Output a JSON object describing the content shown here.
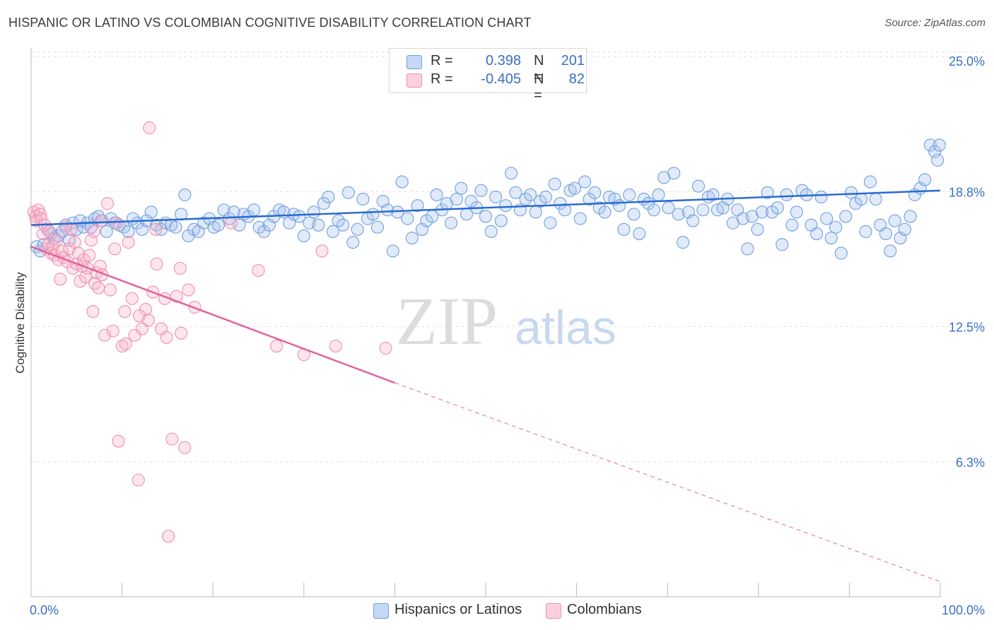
{
  "header": {
    "title": "HISPANIC OR LATINO VS COLOMBIAN COGNITIVE DISABILITY CORRELATION CHART",
    "source": "Source: ZipAtlas.com"
  },
  "legend": {
    "r_label": "R =",
    "n_label": "N =",
    "rows": [
      {
        "r": "0.398",
        "n": "201",
        "color": "#a9c4ee"
      },
      {
        "r": "-0.405",
        "n": "82",
        "color": "#f5b5ca"
      }
    ]
  },
  "bottom_legend": [
    {
      "label": "Hispanics or Latinos",
      "color": "#a9c4ee"
    },
    {
      "label": "Colombians",
      "color": "#f5b5ca"
    }
  ],
  "watermark": {
    "zip": "ZIP",
    "atlas": "atlas"
  },
  "chart_data": {
    "type": "scatter",
    "title": "HISPANIC OR LATINO VS COLOMBIAN COGNITIVE DISABILITY CORRELATION CHART",
    "xlabel": "",
    "ylabel": "Cognitive Disability",
    "xlim": [
      0,
      100
    ],
    "ylim": [
      0,
      25
    ],
    "x_tick_labels": [
      "0.0%",
      "100.0%"
    ],
    "y_ticks": [
      6.25,
      12.5,
      18.75,
      25.0
    ],
    "y_tick_labels": [
      "6.3%",
      "12.5%",
      "18.8%",
      "25.0%"
    ],
    "grid": true,
    "series": [
      {
        "name": "Hispanics or Latinos",
        "color": "#6f9fdf",
        "trend": {
          "x": [
            0,
            100
          ],
          "y": [
            17.2,
            18.8
          ],
          "color": "#2a6bd0"
        },
        "points": [
          [
            0.6,
            16.2
          ],
          [
            1.0,
            16.0
          ],
          [
            1.4,
            16.3
          ],
          [
            1.8,
            17.0
          ],
          [
            2.2,
            16.8
          ],
          [
            2.6,
            16.6
          ],
          [
            3.0,
            16.7
          ],
          [
            3.4,
            16.9
          ],
          [
            3.8,
            17.2
          ],
          [
            4.2,
            16.5
          ],
          [
            4.6,
            17.3
          ],
          [
            5.0,
            17.0
          ],
          [
            5.4,
            17.4
          ],
          [
            5.8,
            17.1
          ],
          [
            6.2,
            17.3
          ],
          [
            6.6,
            17.1
          ],
          [
            7.0,
            17.5
          ],
          [
            7.4,
            17.6
          ],
          [
            7.8,
            17.4
          ],
          [
            8.3,
            16.9
          ],
          [
            8.8,
            17.5
          ],
          [
            9.2,
            17.3
          ],
          [
            9.7,
            17.2
          ],
          [
            10.2,
            17.1
          ],
          [
            10.7,
            16.9
          ],
          [
            11.2,
            17.5
          ],
          [
            11.7,
            17.3
          ],
          [
            12.2,
            17.0
          ],
          [
            12.7,
            17.4
          ],
          [
            13.2,
            17.8
          ],
          [
            13.8,
            17.2
          ],
          [
            14.3,
            17.0
          ],
          [
            14.8,
            17.3
          ],
          [
            15.4,
            17.2
          ],
          [
            15.9,
            17.1
          ],
          [
            16.5,
            17.7
          ],
          [
            16.9,
            18.6
          ],
          [
            17.3,
            16.7
          ],
          [
            17.9,
            17.0
          ],
          [
            18.4,
            16.9
          ],
          [
            19.0,
            17.3
          ],
          [
            19.6,
            17.5
          ],
          [
            20.1,
            17.1
          ],
          [
            20.6,
            17.2
          ],
          [
            21.2,
            17.9
          ],
          [
            21.8,
            17.5
          ],
          [
            22.3,
            17.8
          ],
          [
            22.9,
            17.2
          ],
          [
            23.4,
            17.7
          ],
          [
            23.9,
            17.6
          ],
          [
            24.5,
            17.9
          ],
          [
            25.1,
            17.1
          ],
          [
            25.6,
            16.9
          ],
          [
            26.2,
            17.2
          ],
          [
            26.7,
            17.6
          ],
          [
            27.3,
            17.9
          ],
          [
            27.8,
            17.8
          ],
          [
            28.4,
            17.3
          ],
          [
            28.9,
            17.7
          ],
          [
            29.5,
            17.6
          ],
          [
            30.0,
            16.7
          ],
          [
            30.6,
            17.3
          ],
          [
            31.1,
            17.8
          ],
          [
            31.6,
            17.2
          ],
          [
            32.2,
            18.2
          ],
          [
            32.7,
            18.5
          ],
          [
            33.2,
            16.9
          ],
          [
            33.8,
            17.4
          ],
          [
            34.3,
            17.2
          ],
          [
            34.9,
            18.7
          ],
          [
            35.4,
            16.4
          ],
          [
            35.9,
            17.0
          ],
          [
            36.5,
            18.4
          ],
          [
            37.0,
            17.5
          ],
          [
            37.6,
            17.7
          ],
          [
            38.1,
            17.1
          ],
          [
            38.7,
            18.3
          ],
          [
            39.2,
            17.9
          ],
          [
            39.8,
            16.0
          ],
          [
            40.3,
            17.8
          ],
          [
            40.8,
            19.2
          ],
          [
            41.4,
            17.5
          ],
          [
            41.9,
            16.6
          ],
          [
            42.5,
            18.1
          ],
          [
            43.0,
            17.0
          ],
          [
            43.5,
            17.4
          ],
          [
            44.1,
            17.6
          ],
          [
            44.6,
            18.6
          ],
          [
            45.2,
            17.9
          ],
          [
            45.7,
            18.2
          ],
          [
            46.2,
            17.3
          ],
          [
            46.8,
            18.4
          ],
          [
            47.3,
            18.9
          ],
          [
            47.9,
            17.7
          ],
          [
            48.4,
            18.3
          ],
          [
            49.0,
            18.0
          ],
          [
            49.5,
            18.8
          ],
          [
            50.0,
            17.6
          ],
          [
            50.6,
            16.9
          ],
          [
            51.1,
            18.5
          ],
          [
            51.7,
            17.4
          ],
          [
            52.2,
            18.1
          ],
          [
            52.8,
            19.6
          ],
          [
            53.3,
            18.7
          ],
          [
            53.8,
            17.9
          ],
          [
            54.4,
            18.4
          ],
          [
            54.9,
            18.6
          ],
          [
            55.5,
            17.8
          ],
          [
            56.0,
            18.3
          ],
          [
            56.6,
            18.5
          ],
          [
            57.1,
            17.3
          ],
          [
            57.6,
            19.1
          ],
          [
            58.2,
            18.2
          ],
          [
            58.7,
            17.9
          ],
          [
            59.3,
            18.8
          ],
          [
            59.8,
            18.9
          ],
          [
            60.4,
            17.5
          ],
          [
            60.9,
            19.2
          ],
          [
            61.4,
            18.4
          ],
          [
            62.0,
            18.7
          ],
          [
            62.5,
            18.0
          ],
          [
            63.1,
            17.8
          ],
          [
            63.6,
            18.5
          ],
          [
            64.2,
            18.4
          ],
          [
            64.7,
            18.1
          ],
          [
            65.2,
            17.0
          ],
          [
            65.8,
            18.6
          ],
          [
            66.3,
            17.7
          ],
          [
            66.9,
            16.8
          ],
          [
            67.4,
            18.4
          ],
          [
            67.9,
            18.2
          ],
          [
            68.5,
            17.9
          ],
          [
            69.0,
            18.6
          ],
          [
            69.6,
            19.4
          ],
          [
            70.1,
            18.0
          ],
          [
            70.7,
            19.6
          ],
          [
            71.2,
            17.7
          ],
          [
            71.7,
            16.4
          ],
          [
            72.3,
            17.8
          ],
          [
            72.8,
            17.4
          ],
          [
            73.4,
            19.0
          ],
          [
            73.9,
            17.9
          ],
          [
            74.5,
            18.5
          ],
          [
            75.0,
            18.6
          ],
          [
            75.5,
            17.9
          ],
          [
            76.1,
            18.0
          ],
          [
            76.6,
            18.4
          ],
          [
            77.2,
            17.3
          ],
          [
            77.7,
            17.9
          ],
          [
            78.3,
            17.5
          ],
          [
            78.8,
            16.1
          ],
          [
            79.3,
            17.6
          ],
          [
            79.9,
            17.0
          ],
          [
            80.4,
            17.8
          ],
          [
            81.0,
            18.7
          ],
          [
            81.5,
            17.8
          ],
          [
            82.1,
            18.0
          ],
          [
            82.6,
            16.3
          ],
          [
            83.1,
            18.6
          ],
          [
            83.7,
            17.2
          ],
          [
            84.2,
            17.8
          ],
          [
            84.8,
            18.8
          ],
          [
            85.3,
            18.6
          ],
          [
            85.8,
            17.2
          ],
          [
            86.4,
            16.8
          ],
          [
            86.9,
            18.5
          ],
          [
            87.5,
            17.5
          ],
          [
            88.0,
            16.6
          ],
          [
            88.5,
            17.1
          ],
          [
            89.1,
            15.9
          ],
          [
            89.6,
            17.6
          ],
          [
            90.2,
            18.7
          ],
          [
            90.7,
            18.2
          ],
          [
            91.3,
            18.4
          ],
          [
            91.8,
            16.9
          ],
          [
            92.3,
            19.2
          ],
          [
            92.9,
            18.4
          ],
          [
            93.4,
            17.2
          ],
          [
            94.0,
            16.8
          ],
          [
            94.5,
            16.0
          ],
          [
            95.0,
            17.4
          ],
          [
            95.6,
            16.6
          ],
          [
            96.1,
            17.0
          ],
          [
            96.7,
            17.6
          ],
          [
            97.2,
            18.6
          ],
          [
            97.8,
            18.9
          ],
          [
            98.3,
            19.3
          ],
          [
            98.9,
            20.9
          ],
          [
            99.4,
            20.6
          ],
          [
            99.7,
            20.2
          ],
          [
            99.9,
            20.9
          ]
        ]
      },
      {
        "name": "Colombians",
        "color": "#f08fb0",
        "trend": {
          "x": [
            0,
            40,
            100
          ],
          "y": [
            16.2,
            9.9,
            0.7
          ],
          "solid_until": 40,
          "color": "#e2639a"
        },
        "points": [
          [
            0.3,
            17.8
          ],
          [
            0.5,
            17.6
          ],
          [
            0.6,
            17.4
          ],
          [
            0.8,
            17.9
          ],
          [
            1.0,
            17.7
          ],
          [
            1.1,
            17.5
          ],
          [
            1.3,
            16.8
          ],
          [
            1.5,
            17.2
          ],
          [
            1.7,
            16.1
          ],
          [
            1.9,
            16.3
          ],
          [
            2.0,
            16.9
          ],
          [
            2.2,
            15.9
          ],
          [
            2.4,
            16.2
          ],
          [
            2.6,
            15.8
          ],
          [
            2.8,
            16.5
          ],
          [
            3.0,
            15.6
          ],
          [
            3.2,
            14.7
          ],
          [
            3.4,
            16.0
          ],
          [
            3.6,
            15.7
          ],
          [
            3.8,
            17.1
          ],
          [
            4.0,
            15.5
          ],
          [
            4.2,
            16.1
          ],
          [
            4.4,
            17.0
          ],
          [
            4.6,
            15.2
          ],
          [
            4.8,
            16.4
          ],
          [
            5.0,
            15.4
          ],
          [
            5.2,
            15.9
          ],
          [
            5.4,
            14.6
          ],
          [
            5.6,
            15.3
          ],
          [
            5.8,
            15.6
          ],
          [
            6.0,
            14.8
          ],
          [
            6.2,
            15.2
          ],
          [
            6.4,
            15.8
          ],
          [
            6.6,
            16.5
          ],
          [
            6.8,
            13.2
          ],
          [
            7.0,
            14.5
          ],
          [
            7.2,
            15.0
          ],
          [
            7.4,
            14.3
          ],
          [
            7.6,
            15.3
          ],
          [
            7.8,
            14.9
          ],
          [
            8.1,
            12.1
          ],
          [
            8.4,
            18.2
          ],
          [
            8.7,
            14.2
          ],
          [
            9.0,
            12.3
          ],
          [
            9.4,
            17.3
          ],
          [
            9.6,
            7.2
          ],
          [
            10.0,
            11.6
          ],
          [
            10.4,
            11.7
          ],
          [
            10.7,
            16.4
          ],
          [
            11.1,
            13.8
          ],
          [
            11.4,
            12.1
          ],
          [
            11.8,
            5.4
          ],
          [
            12.2,
            12.4
          ],
          [
            12.6,
            13.3
          ],
          [
            13.0,
            21.7
          ],
          [
            13.4,
            14.1
          ],
          [
            13.8,
            15.4
          ],
          [
            14.3,
            12.4
          ],
          [
            14.7,
            13.8
          ],
          [
            15.1,
            2.8
          ],
          [
            15.5,
            7.3
          ],
          [
            16.0,
            13.9
          ],
          [
            16.4,
            15.2
          ],
          [
            16.9,
            6.9
          ],
          [
            17.3,
            14.2
          ],
          [
            18.0,
            13.4
          ],
          [
            22.0,
            17.3
          ],
          [
            25.0,
            15.1
          ],
          [
            27.0,
            11.6
          ],
          [
            30.0,
            11.2
          ],
          [
            32.0,
            16.0
          ],
          [
            33.5,
            11.6
          ],
          [
            39.0,
            11.5
          ],
          [
            6.9,
            16.9
          ],
          [
            7.7,
            17.4
          ],
          [
            9.2,
            16.1
          ],
          [
            10.3,
            13.2
          ],
          [
            11.9,
            13.0
          ],
          [
            14.9,
            12.0
          ],
          [
            16.5,
            12.2
          ],
          [
            12.9,
            12.8
          ],
          [
            13.7,
            17.0
          ]
        ]
      }
    ]
  }
}
